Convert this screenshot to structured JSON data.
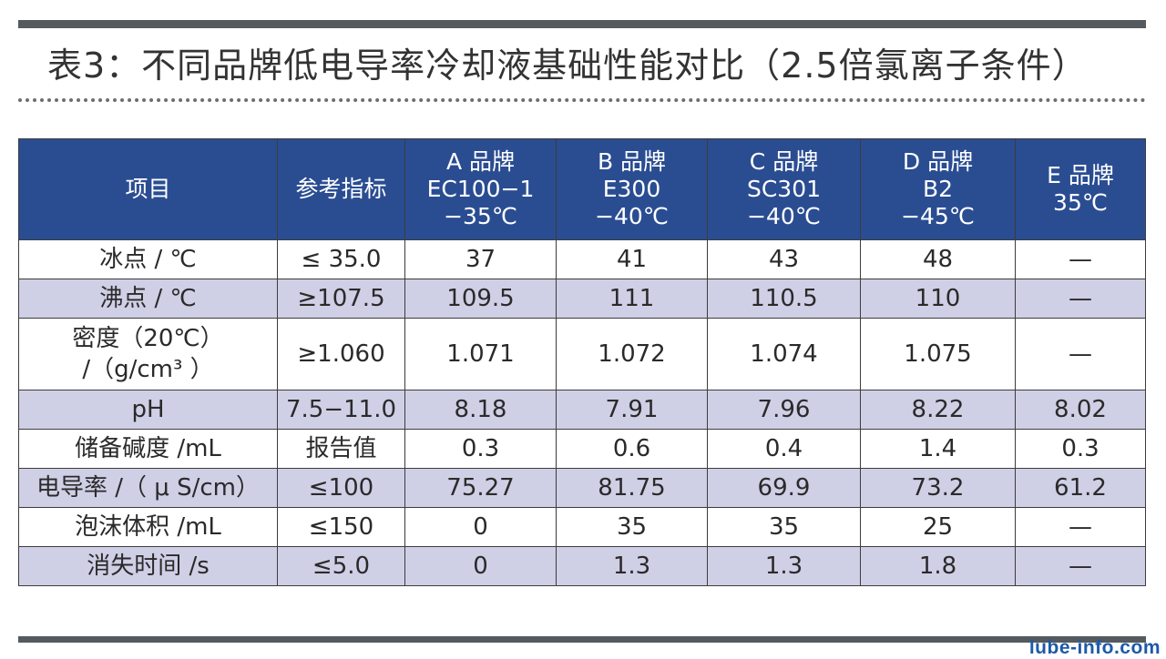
{
  "title": "表3：不同品牌低电导率冷却液基础性能对比（2.5倍氯离子条件）",
  "watermark": "lube-info.com",
  "table": {
    "headers": [
      {
        "lines": [
          "项目"
        ]
      },
      {
        "lines": [
          "参考指标"
        ]
      },
      {
        "lines": [
          "A 品牌",
          "EC100−1",
          "−35℃"
        ]
      },
      {
        "lines": [
          "B 品牌",
          "E300",
          "−40℃"
        ]
      },
      {
        "lines": [
          "C 品牌",
          "SC301",
          "−40℃"
        ]
      },
      {
        "lines": [
          "D 品牌",
          "B2",
          "−45℃"
        ]
      },
      {
        "lines": [
          "E 品牌",
          "35℃"
        ]
      }
    ],
    "rows": [
      {
        "item": [
          "冰点 / ℃"
        ],
        "ref": "≤ 35.0",
        "values": [
          "37",
          "41",
          "43",
          "48",
          "—"
        ]
      },
      {
        "item": [
          "沸点 / ℃"
        ],
        "ref": "≥107.5",
        "values": [
          "109.5",
          "111",
          "110.5",
          "110",
          "—"
        ]
      },
      {
        "item": [
          "密度（20℃）",
          "/（g/cm³ ）"
        ],
        "ref": "≥1.060",
        "values": [
          "1.071",
          "1.072",
          "1.074",
          "1.075",
          "—"
        ]
      },
      {
        "item": [
          "pH"
        ],
        "ref": "7.5−11.0",
        "values": [
          "8.18",
          "7.91",
          "7.96",
          "8.22",
          "8.02"
        ]
      },
      {
        "item": [
          "储备碱度 /mL"
        ],
        "ref": "报告值",
        "values": [
          "0.3",
          "0.6",
          "0.4",
          "1.4",
          "0.3"
        ]
      },
      {
        "item": [
          "电导率 /（ μ S/cm）"
        ],
        "ref": "≤100",
        "values": [
          "75.27",
          "81.75",
          "69.9",
          "73.2",
          "61.2"
        ]
      },
      {
        "item": [
          "泡沫体积 /mL"
        ],
        "ref": "≤150",
        "values": [
          "0",
          "35",
          "35",
          "25",
          "—"
        ]
      },
      {
        "item": [
          "消失时间 /s"
        ],
        "ref": "≤5.0",
        "values": [
          "0",
          "1.3",
          "1.3",
          "1.8",
          "—"
        ]
      }
    ]
  }
}
